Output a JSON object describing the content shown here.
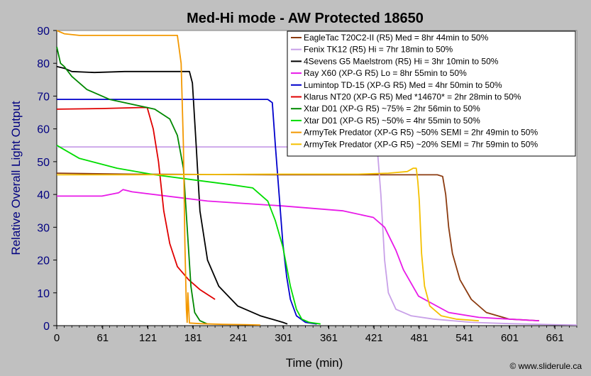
{
  "chart_data": {
    "type": "line",
    "title": "Med-Hi mode - AW Protected 18650",
    "xlabel": "Time (min)",
    "ylabel": "Relative Overall Light Output",
    "xlim": [
      0,
      690
    ],
    "ylim": [
      0,
      90
    ],
    "x_ticks": [
      "0",
      "61",
      "121",
      "181",
      "241",
      "301",
      "361",
      "421",
      "481",
      "541",
      "601",
      "661"
    ],
    "x_tick_values": [
      0,
      61,
      121,
      181,
      241,
      301,
      361,
      421,
      481,
      541,
      601,
      661
    ],
    "y_ticks": [
      0,
      10,
      20,
      30,
      40,
      50,
      60,
      70,
      80,
      90
    ],
    "legend_position": "top-right",
    "credit": "© www.sliderule.ca",
    "series": [
      {
        "name": "EagleTac T20C2-II (R5) Med = 8hr 44min to 50%",
        "color": "#8b3a0f",
        "x": [
          0,
          100,
          300,
          505,
          512,
          516,
          520,
          525,
          535,
          550,
          570,
          600,
          640
        ],
        "y": [
          46.5,
          46.2,
          46.0,
          46.0,
          45.5,
          40,
          30,
          22,
          14,
          8,
          4,
          2,
          1.5
        ]
      },
      {
        "name": "Fenix TK12 (R5) Hi = 7hr 18min to 50%",
        "color": "#c8a0e8",
        "x": [
          0,
          200,
          420,
          426,
          430,
          435,
          440,
          450,
          470,
          500,
          550,
          600,
          660,
          690
        ],
        "y": [
          54.5,
          54.5,
          54.5,
          52,
          40,
          20,
          10,
          5,
          3,
          2,
          1,
          0.6,
          0.3,
          0.2
        ]
      },
      {
        "name": "4Sevens G5 Maelstrom (R5) Hi = 3hr 10min to 50%",
        "color": "#000000",
        "x": [
          0,
          10,
          20,
          50,
          90,
          120,
          160,
          176,
          180,
          185,
          190,
          200,
          215,
          240,
          270,
          300,
          306
        ],
        "y": [
          79,
          78.5,
          77.5,
          77.2,
          77.5,
          77.5,
          77.5,
          77.5,
          74,
          55,
          35,
          20,
          12,
          6,
          3,
          1,
          0.5
        ]
      },
      {
        "name": "Ray X60 (XP-G R5) Lo = 8hr 55min to 50%",
        "color": "#e81ae8",
        "x": [
          0,
          60,
          82,
          88,
          100,
          200,
          300,
          380,
          420,
          435,
          450,
          460,
          480,
          520,
          560,
          600,
          640
        ],
        "y": [
          39.5,
          39.5,
          40.5,
          41.5,
          40.8,
          38,
          36.5,
          35,
          33,
          30,
          23,
          17,
          9,
          4,
          2.5,
          2,
          1.5
        ]
      },
      {
        "name": "Lumintop TD-15 (XP-G R5) Med = 4hr 50min to 50%",
        "color": "#0000cc",
        "x": [
          0,
          100,
          200,
          280,
          286,
          290,
          295,
          300,
          305,
          310,
          318,
          330,
          345
        ],
        "y": [
          69,
          69,
          69,
          69,
          68,
          55,
          40,
          25,
          15,
          8,
          3,
          1,
          0.5
        ]
      },
      {
        "name": "Klarus NT20 (XP-G R5) Med *14670* = 2hr 28min to 50%",
        "color": "#e00000",
        "x": [
          0,
          60,
          110,
          120,
          128,
          135,
          142,
          150,
          160,
          175,
          190,
          210
        ],
        "y": [
          66,
          66.2,
          66.5,
          66.5,
          60,
          50,
          35,
          25,
          18,
          14,
          11,
          8
        ]
      },
      {
        "name": "Xtar D01 (XP-G R5) ~75% = 2hr 56min to 50%",
        "color": "#008800",
        "x": [
          0,
          5,
          10,
          20,
          40,
          70,
          100,
          130,
          150,
          160,
          168,
          173,
          178,
          183,
          190,
          200
        ],
        "y": [
          85,
          80,
          79,
          76,
          72,
          69,
          67.5,
          66,
          63,
          58,
          48,
          30,
          12,
          4,
          1.5,
          0.5
        ]
      },
      {
        "name": "Xtar D01 (XP-G R5) ~50% = 4hr 55min to 50%",
        "color": "#00dd00",
        "x": [
          0,
          30,
          80,
          130,
          180,
          230,
          260,
          280,
          290,
          300,
          310,
          318,
          325,
          335,
          350
        ],
        "y": [
          55,
          51,
          48,
          46,
          44.5,
          43,
          42,
          38,
          32,
          24,
          12,
          5,
          2,
          1,
          0.5
        ]
      },
      {
        "name": "ArmyTek Predator (XP-G R5) ~50% SEMI = 2hr 49min to 50%",
        "color": "#f39800",
        "x": [
          0,
          10,
          30,
          100,
          160,
          165,
          168,
          170,
          172,
          173,
          174,
          176,
          190,
          220,
          250,
          270
        ],
        "y": [
          90,
          89,
          88.5,
          88.5,
          88.5,
          80,
          55,
          25,
          5,
          1,
          10,
          0.8,
          0.6,
          0.4,
          0.3,
          0.2
        ]
      },
      {
        "name": "ArmyTek Predator (XP-G R5) ~20% SEMI = 7hr 59min to 50%",
        "color": "#f4c000",
        "x": [
          0,
          100,
          300,
          400,
          440,
          465,
          473,
          477,
          479,
          481,
          484,
          488,
          495,
          510,
          530,
          560
        ],
        "y": [
          46,
          46,
          46.2,
          46.2,
          46.5,
          47,
          48,
          48,
          44,
          38,
          22,
          12,
          6,
          3,
          2,
          1.5
        ]
      }
    ]
  }
}
